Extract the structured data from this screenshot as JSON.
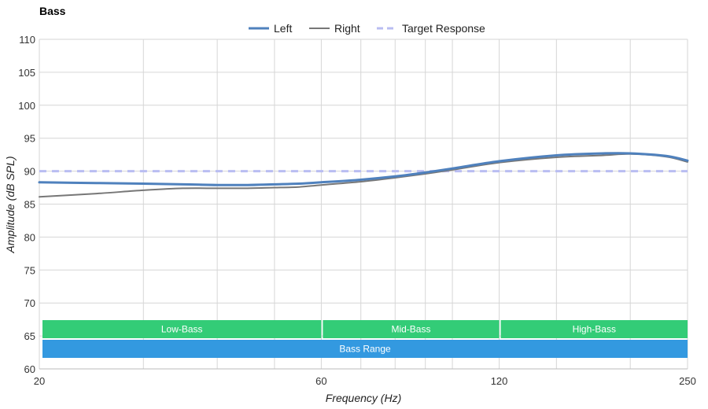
{
  "chart_data": {
    "type": "line",
    "title": "Bass",
    "xlabel": "Frequency (Hz)",
    "ylabel": "Amplitude (dB SPL)",
    "x_scale": "log",
    "xlim": [
      20,
      250
    ],
    "ylim": [
      60,
      110
    ],
    "x_ticks": [
      20,
      60,
      120,
      250
    ],
    "y_ticks": [
      60,
      65,
      70,
      75,
      80,
      85,
      90,
      95,
      100,
      105,
      110
    ],
    "x_minor_gridlines": [
      20,
      30,
      40,
      50,
      60,
      70,
      80,
      90,
      100,
      120,
      150,
      200,
      250
    ],
    "grid": true,
    "legend_position": "top-center",
    "series": [
      {
        "name": "Left",
        "color": "#4f81bd",
        "style": "solid",
        "x": [
          20,
          25,
          30,
          35,
          40,
          45,
          50,
          55,
          60,
          70,
          80,
          90,
          100,
          120,
          150,
          180,
          200,
          230,
          250
        ],
        "y": [
          88.3,
          88.2,
          88.1,
          88.0,
          87.9,
          87.9,
          88.0,
          88.1,
          88.3,
          88.7,
          89.2,
          89.8,
          90.4,
          91.5,
          92.4,
          92.7,
          92.7,
          92.3,
          91.6
        ]
      },
      {
        "name": "Right",
        "color": "#777777",
        "style": "solid",
        "x": [
          20,
          25,
          30,
          35,
          40,
          45,
          50,
          55,
          60,
          70,
          80,
          90,
          100,
          120,
          150,
          180,
          200,
          230,
          250
        ],
        "y": [
          86.1,
          86.6,
          87.1,
          87.4,
          87.4,
          87.4,
          87.5,
          87.6,
          87.9,
          88.4,
          89.0,
          89.6,
          90.2,
          91.3,
          92.1,
          92.4,
          92.6,
          92.2,
          91.4
        ]
      },
      {
        "name": "Target Response",
        "color": "#b9bdf2",
        "style": "dashed",
        "x": [
          20,
          250
        ],
        "y": [
          90,
          90
        ]
      }
    ],
    "bands": [
      {
        "label": "Low-Bass",
        "x_start": 20,
        "x_end": 60,
        "color": "#33cc77"
      },
      {
        "label": "Mid-Bass",
        "x_start": 60,
        "x_end": 120,
        "color": "#33cc77"
      },
      {
        "label": "High-Bass",
        "x_start": 120,
        "x_end": 250,
        "color": "#33cc77"
      },
      {
        "label": "Bass Range",
        "x_start": 20,
        "x_end": 250,
        "color": "#3399e0"
      }
    ]
  }
}
